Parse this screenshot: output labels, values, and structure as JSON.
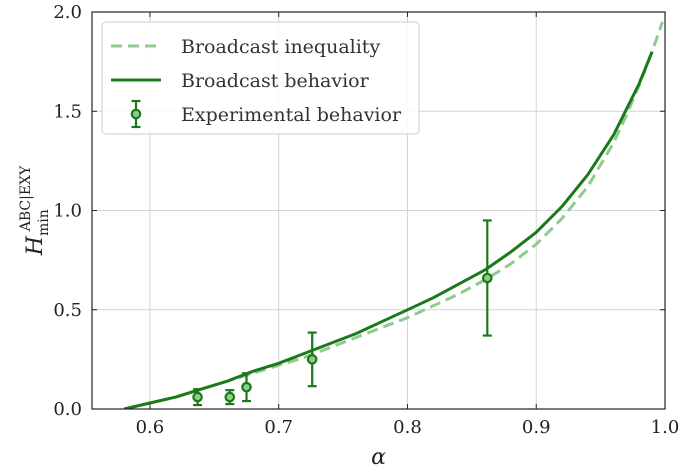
{
  "chart_data": {
    "type": "line",
    "xlabel": "α",
    "ylabel": {
      "base": "H",
      "sup": "ABC|EXY",
      "sub": "min"
    },
    "xlim": [
      0.555,
      1.0
    ],
    "ylim": [
      0.0,
      2.0
    ],
    "xticks": [
      0.6,
      0.7,
      0.8,
      0.9,
      1.0
    ],
    "xtick_labels": [
      "0.6",
      "0.7",
      "0.8",
      "0.9",
      "1.0"
    ],
    "yticks": [
      0.0,
      0.5,
      1.0,
      1.5,
      2.0
    ],
    "ytick_labels": [
      "0.0",
      "0.5",
      "1.0",
      "1.5",
      "2.0"
    ],
    "grid": true,
    "legend_position": "top-left",
    "series": [
      {
        "name": "Broadcast inequality",
        "kind": "dashed-line",
        "color": "#8fcb8f",
        "x": [
          0.58,
          0.6,
          0.62,
          0.64,
          0.66,
          0.68,
          0.7,
          0.72,
          0.74,
          0.76,
          0.78,
          0.8,
          0.82,
          0.84,
          0.86,
          0.88,
          0.9,
          0.92,
          0.94,
          0.96,
          0.97,
          0.98,
          0.99,
          0.998
        ],
        "y": [
          0.0,
          0.03,
          0.06,
          0.1,
          0.14,
          0.18,
          0.22,
          0.26,
          0.31,
          0.36,
          0.41,
          0.46,
          0.52,
          0.58,
          0.65,
          0.73,
          0.83,
          0.96,
          1.12,
          1.34,
          1.48,
          1.63,
          1.8,
          1.95
        ]
      },
      {
        "name": "Broadcast behavior",
        "kind": "solid-line",
        "color": "#1a7a1a",
        "x": [
          0.58,
          0.6,
          0.62,
          0.64,
          0.66,
          0.68,
          0.7,
          0.72,
          0.74,
          0.76,
          0.78,
          0.8,
          0.82,
          0.84,
          0.86,
          0.88,
          0.9,
          0.92,
          0.94,
          0.96,
          0.97,
          0.98,
          0.99
        ],
        "y": [
          0.0,
          0.03,
          0.06,
          0.1,
          0.14,
          0.19,
          0.23,
          0.28,
          0.33,
          0.38,
          0.44,
          0.5,
          0.56,
          0.63,
          0.7,
          0.79,
          0.89,
          1.02,
          1.18,
          1.38,
          1.51,
          1.64,
          1.8
        ]
      },
      {
        "name": "Experimental behavior",
        "kind": "errorbar",
        "color": "#1a7a1a",
        "x": [
          0.637,
          0.662,
          0.675,
          0.726,
          0.862
        ],
        "y": [
          0.06,
          0.06,
          0.11,
          0.25,
          0.66
        ],
        "yerr": [
          0.04,
          0.035,
          0.07,
          0.135,
          0.29
        ]
      }
    ]
  }
}
